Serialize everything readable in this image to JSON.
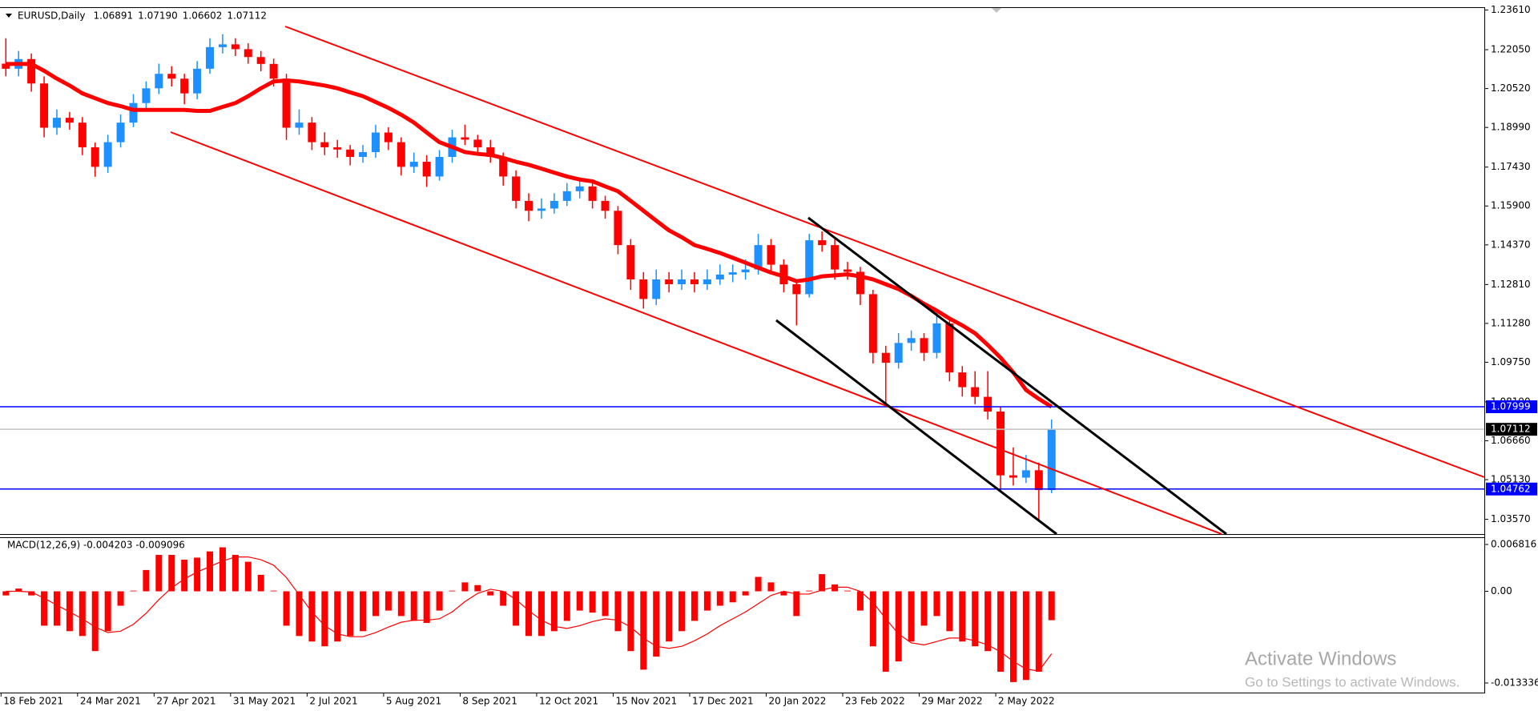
{
  "chart_data": {
    "type": "candlestick",
    "title": "EURUSD,Daily",
    "quote": [
      "1.06891",
      "1.07190",
      "1.06602",
      "1.07112"
    ],
    "up_color": "#1e90ff",
    "down_color": "#ff0000",
    "ylim": [
      1.0299,
      1.2369
    ],
    "yticks": [
      {
        "value": 1.2361,
        "label": "1.23610"
      },
      {
        "value": 1.2205,
        "label": "1.22050"
      },
      {
        "value": 1.2052,
        "label": "1.20520"
      },
      {
        "value": 1.1899,
        "label": "1.18990"
      },
      {
        "value": 1.1743,
        "label": "1.17430"
      },
      {
        "value": 1.159,
        "label": "1.15900"
      },
      {
        "value": 1.1437,
        "label": "1.14370"
      },
      {
        "value": 1.1281,
        "label": "1.12810"
      },
      {
        "value": 1.1128,
        "label": "1.11280"
      },
      {
        "value": 1.0975,
        "label": "1.09750"
      },
      {
        "value": 1.0819,
        "label": "1.08190"
      },
      {
        "value": 1.0666,
        "label": "1.06660"
      },
      {
        "value": 1.0513,
        "label": "1.05130"
      },
      {
        "value": 1.0357,
        "label": "1.03570"
      }
    ],
    "categories": [
      "18 Feb 2021",
      null,
      null,
      null,
      null,
      null,
      "24 Mar 2021",
      null,
      null,
      null,
      null,
      null,
      "27 Apr 2021",
      null,
      null,
      null,
      null,
      null,
      "31 May 2021",
      null,
      null,
      null,
      null,
      null,
      "2 Jul 2021",
      null,
      null,
      null,
      null,
      null,
      "5 Aug 2021",
      null,
      null,
      null,
      null,
      null,
      "8 Sep 2021",
      null,
      null,
      null,
      null,
      null,
      "12 Oct 2021",
      null,
      null,
      null,
      null,
      null,
      "15 Nov 2021",
      null,
      null,
      null,
      null,
      null,
      "17 Dec 2021",
      null,
      null,
      null,
      null,
      null,
      "20 Jan 2022",
      null,
      null,
      null,
      null,
      null,
      "23 Feb 2022",
      null,
      null,
      null,
      null,
      null,
      "29 Mar 2022",
      null,
      null,
      null,
      null,
      null,
      "2 May 2022",
      null,
      null,
      null,
      null
    ],
    "ohlc": [
      [
        1.215,
        1.225,
        1.21,
        1.213
      ],
      [
        1.213,
        1.22,
        1.21,
        1.2168
      ],
      [
        1.2168,
        1.219,
        1.204,
        1.2072
      ],
      [
        1.2072,
        1.21,
        1.186,
        1.1898
      ],
      [
        1.1898,
        1.197,
        1.187,
        1.1937
      ],
      [
        1.1937,
        1.196,
        1.189,
        1.1918
      ],
      [
        1.1918,
        1.194,
        1.179,
        1.1821
      ],
      [
        1.1821,
        1.184,
        1.1705,
        1.1744
      ],
      [
        1.1744,
        1.187,
        1.172,
        1.1841
      ],
      [
        1.1841,
        1.195,
        1.182,
        1.1918
      ],
      [
        1.1918,
        1.203,
        1.19,
        1.1995
      ],
      [
        1.1995,
        1.208,
        1.197,
        1.2053
      ],
      [
        1.2053,
        1.215,
        1.203,
        1.211
      ],
      [
        1.211,
        1.214,
        1.206,
        1.2091
      ],
      [
        1.2091,
        1.211,
        1.199,
        1.2033
      ],
      [
        1.2033,
        1.216,
        1.201,
        1.213
      ],
      [
        1.213,
        1.225,
        1.211,
        1.2215
      ],
      [
        1.2215,
        1.2266,
        1.219,
        1.2226
      ],
      [
        1.2226,
        1.225,
        1.218,
        1.2207
      ],
      [
        1.2207,
        1.223,
        1.215,
        1.2176
      ],
      [
        1.2176,
        1.22,
        1.212,
        1.2149
      ],
      [
        1.2149,
        1.217,
        1.206,
        1.2091
      ],
      [
        1.2091,
        1.211,
        1.185,
        1.1898
      ],
      [
        1.1898,
        1.197,
        1.187,
        1.1918
      ],
      [
        1.1918,
        1.194,
        1.181,
        1.1841
      ],
      [
        1.1841,
        1.188,
        1.179,
        1.1821
      ],
      [
        1.1821,
        1.185,
        1.178,
        1.1812
      ],
      [
        1.1812,
        1.183,
        1.175,
        1.1783
      ],
      [
        1.1783,
        1.183,
        1.176,
        1.1802
      ],
      [
        1.1802,
        1.191,
        1.178,
        1.1879
      ],
      [
        1.1879,
        1.19,
        1.181,
        1.1841
      ],
      [
        1.1841,
        1.186,
        1.171,
        1.1744
      ],
      [
        1.1744,
        1.18,
        1.172,
        1.1764
      ],
      [
        1.1764,
        1.179,
        1.1665,
        1.1706
      ],
      [
        1.1706,
        1.181,
        1.169,
        1.1783
      ],
      [
        1.1783,
        1.189,
        1.176,
        1.186
      ],
      [
        1.186,
        1.191,
        1.183,
        1.1851
      ],
      [
        1.1851,
        1.187,
        1.179,
        1.1821
      ],
      [
        1.1821,
        1.185,
        1.176,
        1.1783
      ],
      [
        1.1783,
        1.18,
        1.167,
        1.1706
      ],
      [
        1.1706,
        1.173,
        1.158,
        1.161
      ],
      [
        1.161,
        1.164,
        1.153,
        1.1571
      ],
      [
        1.1571,
        1.162,
        1.154,
        1.158
      ],
      [
        1.158,
        1.164,
        1.156,
        1.161
      ],
      [
        1.161,
        1.168,
        1.159,
        1.1648
      ],
      [
        1.1648,
        1.17,
        1.162,
        1.1667
      ],
      [
        1.1667,
        1.169,
        1.158,
        1.161
      ],
      [
        1.161,
        1.163,
        1.154,
        1.1571
      ],
      [
        1.1571,
        1.159,
        1.14,
        1.1436
      ],
      [
        1.1436,
        1.146,
        1.126,
        1.1301
      ],
      [
        1.1301,
        1.133,
        1.1186,
        1.1224
      ],
      [
        1.1224,
        1.134,
        1.12,
        1.1301
      ],
      [
        1.1301,
        1.133,
        1.125,
        1.1282
      ],
      [
        1.1282,
        1.134,
        1.126,
        1.1301
      ],
      [
        1.1301,
        1.133,
        1.125,
        1.1282
      ],
      [
        1.1282,
        1.134,
        1.126,
        1.1301
      ],
      [
        1.1301,
        1.136,
        1.128,
        1.132
      ],
      [
        1.132,
        1.136,
        1.129,
        1.1329
      ],
      [
        1.1329,
        1.138,
        1.13,
        1.134
      ],
      [
        1.134,
        1.148,
        1.132,
        1.1436
      ],
      [
        1.1436,
        1.146,
        1.133,
        1.1359
      ],
      [
        1.1359,
        1.138,
        1.125,
        1.1282
      ],
      [
        1.1282,
        1.13,
        1.112,
        1.1243
      ],
      [
        1.1243,
        1.148,
        1.123,
        1.1455
      ],
      [
        1.1455,
        1.149,
        1.141,
        1.1436
      ],
      [
        1.1436,
        1.146,
        1.13,
        1.134
      ],
      [
        1.134,
        1.137,
        1.13,
        1.1331
      ],
      [
        1.1331,
        1.135,
        1.12,
        1.1243
      ],
      [
        1.1243,
        1.126,
        1.097,
        1.1012
      ],
      [
        1.1012,
        1.104,
        1.081,
        1.0973
      ],
      [
        1.0973,
        1.109,
        1.095,
        1.1051
      ],
      [
        1.1051,
        1.11,
        1.102,
        1.107
      ],
      [
        1.107,
        1.109,
        1.098,
        1.1012
      ],
      [
        1.1012,
        1.1185,
        1.099,
        1.1128
      ],
      [
        1.1128,
        1.115,
        1.09,
        1.0935
      ],
      [
        1.0935,
        1.096,
        1.084,
        1.0877
      ],
      [
        1.0877,
        1.094,
        1.081,
        1.0839
      ],
      [
        1.0839,
        1.094,
        1.075,
        1.0781
      ],
      [
        1.0781,
        1.08,
        1.047,
        1.053
      ],
      [
        1.053,
        1.064,
        1.049,
        1.0521
      ],
      [
        1.0521,
        1.061,
        1.05,
        1.055
      ],
      [
        1.055,
        1.058,
        1.035,
        1.0472
      ],
      [
        1.0472,
        1.075,
        1.046,
        1.0711
      ]
    ],
    "ma": {
      "color": "#ff0000",
      "values": [
        1.2149,
        1.2149,
        1.2149,
        1.2122,
        1.2091,
        1.2064,
        1.2033,
        1.2014,
        1.1995,
        1.1983,
        1.1968,
        1.1968,
        1.1968,
        1.1968,
        1.1968,
        1.1964,
        1.1964,
        1.198,
        1.1995,
        1.2022,
        1.2053,
        1.208,
        1.2084,
        1.208,
        1.2072,
        1.2064,
        1.2053,
        1.2037,
        1.2022,
        1.1999,
        1.1976,
        1.1949,
        1.1918,
        1.1879,
        1.1841,
        1.1822,
        1.1802,
        1.1795,
        1.1791,
        1.1779,
        1.1764,
        1.1752,
        1.1737,
        1.1721,
        1.1706,
        1.1694,
        1.1687,
        1.1667,
        1.1648,
        1.161,
        1.1571,
        1.1532,
        1.1494,
        1.1467,
        1.1436,
        1.1421,
        1.1405,
        1.1386,
        1.1367,
        1.1347,
        1.1328,
        1.1313,
        1.1294,
        1.1301,
        1.1313,
        1.1317,
        1.1321,
        1.1313,
        1.1301,
        1.1282,
        1.1263,
        1.1236,
        1.1205,
        1.1178,
        1.1147,
        1.112,
        1.1089,
        1.1043,
        1.0993,
        1.0935,
        1.0866,
        1.0831,
        1.08
      ]
    },
    "hlines": [
      {
        "value": 1.07999,
        "color": "#0000ff",
        "label_color": "#0000ff"
      },
      {
        "value": 1.04762,
        "color": "#0000ff",
        "label_color": "#0000ff"
      },
      {
        "value": 1.07112,
        "color": "#c0c0c0",
        "label_color": "#000000"
      }
    ],
    "indicator": {
      "type": "macd",
      "title": "MACD(12,26,9) -0.004203 -0.009096",
      "ylim": [
        -0.013336,
        0.006816
      ],
      "yticks": [
        0.006816,
        {
          "value": 0,
          "label": "0.00"
        },
        -0.013336
      ],
      "histogram": {
        "color": "#ff0000",
        "values": [
          -0.0006,
          0.0004,
          -0.0006,
          -0.005,
          -0.005,
          -0.0058,
          -0.0065,
          -0.0087,
          -0.0058,
          -0.0021,
          0.0001,
          0.0031,
          0.0053,
          0.0053,
          0.0046,
          0.0049,
          0.0058,
          0.0064,
          0.0053,
          0.0043,
          0.0024,
          0.0001,
          -0.005,
          -0.0065,
          -0.0073,
          -0.008,
          -0.0073,
          -0.0065,
          -0.0058,
          -0.0036,
          -0.0028,
          -0.0036,
          -0.0043,
          -0.0046,
          -0.0028,
          0.0001,
          0.0013,
          0.0009,
          -0.0006,
          -0.0021,
          -0.005,
          -0.0065,
          -0.0065,
          -0.0058,
          -0.0043,
          -0.0028,
          -0.0031,
          -0.0036,
          -0.0058,
          -0.0087,
          -0.0114,
          -0.0095,
          -0.0073,
          -0.0058,
          -0.0043,
          -0.0028,
          -0.0021,
          -0.0016,
          -0.0006,
          0.0021,
          0.0013,
          -0.0006,
          -0.0036,
          0.0001,
          0.0025,
          0.001,
          0.0001,
          -0.0028,
          -0.008,
          -0.0117,
          -0.0102,
          -0.0073,
          -0.005,
          -0.0036,
          -0.0058,
          -0.0073,
          -0.008,
          -0.0087,
          -0.0117,
          -0.0132,
          -0.0129,
          -0.0117,
          -0.0042
        ]
      },
      "signal": {
        "color": "#ff0000",
        "values": [
          0.0,
          0.0,
          -0.0001,
          -0.001,
          -0.002,
          -0.003,
          -0.004,
          -0.0052,
          -0.006,
          -0.0058,
          -0.0048,
          -0.0032,
          -0.0012,
          0.0005,
          0.0018,
          0.0028,
          0.0036,
          0.0044,
          0.005,
          0.005,
          0.0046,
          0.0038,
          0.002,
          -0.0005,
          -0.003,
          -0.005,
          -0.0062,
          -0.0066,
          -0.0066,
          -0.006,
          -0.0052,
          -0.0045,
          -0.0042,
          -0.0042,
          -0.004,
          -0.003,
          -0.0015,
          -0.0003,
          0.0003,
          0.0,
          -0.0012,
          -0.0028,
          -0.0042,
          -0.0051,
          -0.0054,
          -0.005,
          -0.0044,
          -0.004,
          -0.0042,
          -0.0052,
          -0.0068,
          -0.008,
          -0.0083,
          -0.008,
          -0.0072,
          -0.0062,
          -0.005,
          -0.004,
          -0.003,
          -0.0018,
          -0.0006,
          0.0,
          -0.0004,
          -0.0004,
          0.0002,
          0.0006,
          0.0006,
          0.0,
          -0.0016,
          -0.004,
          -0.0062,
          -0.0075,
          -0.0078,
          -0.0073,
          -0.0068,
          -0.0068,
          -0.0072,
          -0.0078,
          -0.0088,
          -0.0102,
          -0.0113,
          -0.0116,
          -0.0091
        ]
      }
    }
  },
  "watermark": {
    "title": "Activate Windows",
    "subtitle": "Go to Settings to activate Windows."
  }
}
